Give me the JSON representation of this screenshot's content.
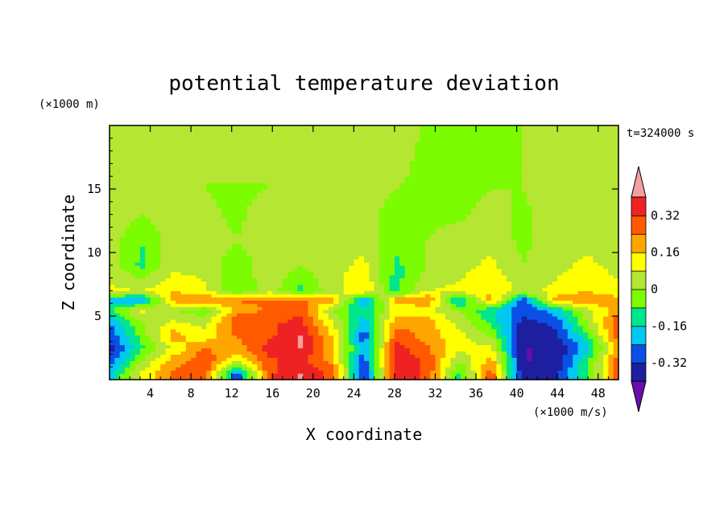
{
  "chart_data": {
    "type": "heatmap",
    "title": "potential temperature deviation",
    "xlabel": "X coordinate",
    "ylabel": "Z coordinate",
    "x_unit": "(×1000 m/s)",
    "y_unit": "(×1000 m)",
    "time_label": "t=324000 s",
    "xlim": [
      0,
      50
    ],
    "ylim": [
      0,
      20
    ],
    "x_ticks": [
      4,
      8,
      12,
      16,
      20,
      24,
      28,
      32,
      36,
      40,
      44,
      48
    ],
    "y_ticks": [
      5,
      10,
      15
    ],
    "colorbar": {
      "levels": [
        -0.4,
        -0.32,
        -0.24,
        -0.16,
        -0.08,
        0,
        0.08,
        0.16,
        0.24,
        0.32,
        0.4
      ],
      "colors": [
        "#6a0dad",
        "#1e1ea0",
        "#0a4fe6",
        "#00c8f0",
        "#00e68c",
        "#7cfc00",
        "#b4e632",
        "#ffff00",
        "#ffa500",
        "#ff5a00",
        "#ee2222",
        "#f4a0a0"
      ],
      "tick_labels": [
        "0.32",
        "0.16",
        "0",
        "-0.16",
        "-0.32"
      ],
      "tick_values": [
        0.32,
        0.16,
        0,
        -0.16,
        -0.32
      ]
    },
    "grid_x": [
      0,
      3.125,
      6.25,
      9.375,
      12.5,
      15.625,
      18.75,
      21.875,
      25,
      28.125,
      31.25,
      34.375,
      37.5,
      40.625,
      43.75,
      46.875,
      50
    ],
    "grid_z": [
      0.5,
      1.5,
      2.5,
      3.5,
      4.5,
      5.5,
      6.3,
      7,
      9,
      11,
      13,
      15,
      17,
      19
    ],
    "values": [
      [
        -0.2,
        0.1,
        0.25,
        0.3,
        -0.3,
        0.3,
        0.4,
        0.3,
        -0.35,
        0.4,
        0.3,
        -0.1,
        0.3,
        -0.4,
        -0.35,
        -0.1,
        0.3
      ],
      [
        -0.3,
        0.0,
        0.2,
        0.3,
        0.1,
        0.3,
        0.35,
        0.2,
        -0.3,
        0.4,
        0.3,
        0.0,
        0.2,
        -0.4,
        -0.4,
        -0.1,
        0.3
      ],
      [
        -0.35,
        -0.1,
        0.1,
        0.25,
        0.2,
        0.35,
        0.4,
        0.2,
        -0.25,
        0.35,
        0.25,
        0.1,
        0.1,
        -0.4,
        -0.4,
        -0.2,
        0.2
      ],
      [
        -0.3,
        -0.05,
        0.2,
        0.1,
        0.25,
        0.3,
        0.4,
        0.15,
        -0.3,
        0.3,
        0.2,
        0.1,
        0.0,
        -0.4,
        -0.35,
        -0.1,
        0.3
      ],
      [
        -0.25,
        0.0,
        0.1,
        0.05,
        0.3,
        0.3,
        0.35,
        0.1,
        -0.2,
        0.2,
        0.2,
        0.05,
        -0.1,
        -0.35,
        -0.3,
        0.0,
        0.3
      ],
      [
        -0.1,
        0.1,
        0.0,
        -0.05,
        0.2,
        0.25,
        0.3,
        0.0,
        -0.15,
        0.1,
        0.1,
        0.0,
        -0.15,
        -0.3,
        -0.2,
        0.05,
        0.2
      ],
      [
        -0.2,
        -0.25,
        0.2,
        0.25,
        0.25,
        0.25,
        0.25,
        0.2,
        -0.25,
        0.2,
        0.25,
        -0.2,
        0.2,
        -0.3,
        0.2,
        0.25,
        0.2
      ],
      [
        0.1,
        0.08,
        0.16,
        0.1,
        -0.08,
        0.05,
        -0.1,
        0.05,
        0.16,
        -0.12,
        0.08,
        0.1,
        0.16,
        0.05,
        0.1,
        0.16,
        0.1
      ],
      [
        0.05,
        -0.1,
        0.05,
        0.05,
        -0.05,
        0.05,
        0.0,
        0.05,
        0.1,
        -0.1,
        0.0,
        0.05,
        0.1,
        0.0,
        0.05,
        0.1,
        0.05
      ],
      [
        0.05,
        -0.08,
        0.05,
        0.05,
        0.0,
        0.05,
        0.0,
        0.05,
        0.05,
        -0.05,
        0.0,
        0.05,
        0.05,
        -0.02,
        0.05,
        0.05,
        0.05
      ],
      [
        0.05,
        0.0,
        0.05,
        0.02,
        -0.02,
        0.05,
        0.05,
        0.05,
        0.05,
        -0.05,
        -0.02,
        -0.02,
        0.05,
        -0.02,
        0.05,
        0.05,
        0.05
      ],
      [
        0.05,
        0.05,
        0.05,
        0.0,
        -0.02,
        0.0,
        0.05,
        0.05,
        0.05,
        0.0,
        -0.05,
        -0.05,
        0.0,
        0.0,
        0.05,
        0.05,
        0.05
      ],
      [
        0.05,
        0.05,
        0.0,
        0.0,
        0.05,
        0.0,
        0.05,
        0.05,
        0.05,
        0.05,
        -0.05,
        -0.05,
        -0.05,
        0.0,
        0.0,
        0.05,
        0.05
      ],
      [
        0.0,
        0.0,
        0.0,
        0.0,
        0.0,
        0.0,
        0.05,
        0.05,
        0.05,
        0.05,
        -0.02,
        -0.05,
        -0.05,
        0.0,
        0.0,
        0.0,
        0.0
      ]
    ]
  }
}
